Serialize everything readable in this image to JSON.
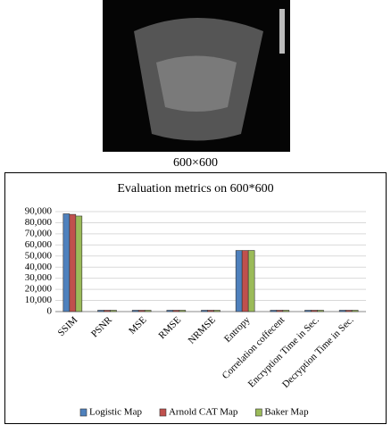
{
  "caption": "600×600",
  "chart_data": {
    "type": "bar",
    "title": "Evaluation metrics on 600*600",
    "categories": [
      "SSIM",
      "PSNR",
      "MSE",
      "RMSE",
      "NRMSE",
      "Entropy",
      "Correlation coffecent",
      "Encryption Time in Sec.",
      "Decryption Time in Sec."
    ],
    "series": [
      {
        "name": "Logistic Map",
        "color": "#4f81bd",
        "values": [
          88000,
          0,
          0,
          0,
          0,
          55000,
          0,
          0,
          0
        ]
      },
      {
        "name": "Arnold CAT Map",
        "color": "#c0504d",
        "values": [
          87500,
          0,
          0,
          0,
          0,
          55000,
          0,
          0,
          0
        ]
      },
      {
        "name": "Baker Map",
        "color": "#9bbb59",
        "values": [
          86000,
          0,
          0,
          0,
          0,
          55000,
          0,
          0,
          0
        ]
      }
    ],
    "ylim": [
      0,
      90000
    ],
    "yticks": [
      0,
      {
        "value": 10000,
        "label": "10,000"
      },
      {
        "value": 20000,
        "label": "20,000"
      },
      {
        "value": 30000,
        "label": "30,000"
      },
      {
        "value": 40000,
        "label": "40,000"
      },
      {
        "value": 50000,
        "label": "50,000"
      },
      {
        "value": 60000,
        "label": "60,000"
      },
      {
        "value": 70000,
        "label": "70,000"
      },
      {
        "value": 80000,
        "label": "80,000"
      },
      {
        "value": 90000,
        "label": "90,000"
      }
    ],
    "grid": true,
    "legend": "bottom"
  }
}
